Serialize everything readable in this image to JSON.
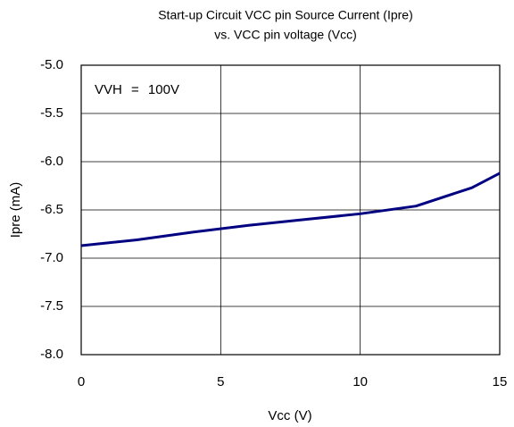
{
  "chart_data": {
    "type": "line",
    "title": [
      "Start-up Circuit VCC pin Source Current (Ipre)",
      "vs. VCC pin voltage (Vcc)"
    ],
    "annotation": "VVH = 100V",
    "x_label": "Vcc (V)",
    "y_label": "Ipre (mA)",
    "x": [
      0,
      2,
      4,
      6,
      8,
      10,
      12,
      14,
      15
    ],
    "series": [
      {
        "name": "Ipre",
        "color": "#000080",
        "values": [
          -6.87,
          -6.81,
          -6.73,
          -6.66,
          -6.6,
          -6.54,
          -6.46,
          -6.27,
          -6.12
        ]
      }
    ],
    "xlim": [
      0,
      15
    ],
    "xticks": [
      0,
      5,
      10,
      15
    ],
    "ylim": [
      -8,
      -5
    ],
    "yticks": [
      {
        "value": -8,
        "label": "-8.0"
      },
      -7.5,
      {
        "value": -7,
        "label": "-7.0"
      },
      -6.5,
      {
        "value": -6,
        "label": "-6.0"
      },
      -5.5,
      {
        "value": -5,
        "label": "-5.0"
      }
    ],
    "grid": true
  }
}
